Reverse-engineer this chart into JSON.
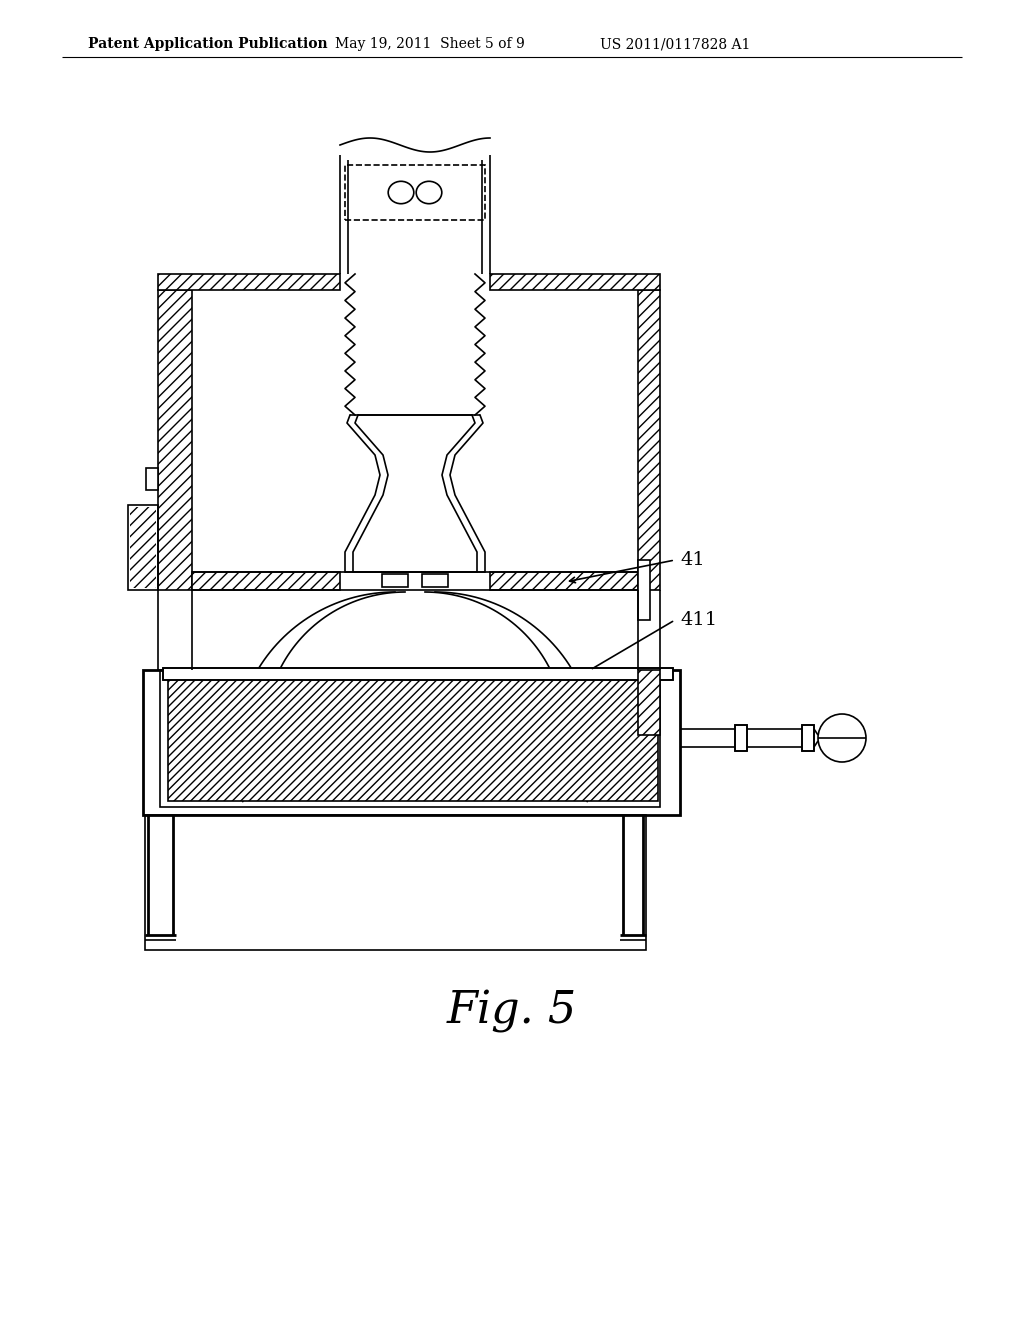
{
  "bg_color": "#ffffff",
  "line_color": "#000000",
  "title_header": "Patent Application Publication",
  "title_date": "May 19, 2011  Sheet 5 of 9",
  "title_patent": "US 2011/0117828 A1",
  "fig_label": "Fig. 5",
  "label_41": "41",
  "label_411": "411",
  "lw": 1.2,
  "lw_thick": 2.0
}
